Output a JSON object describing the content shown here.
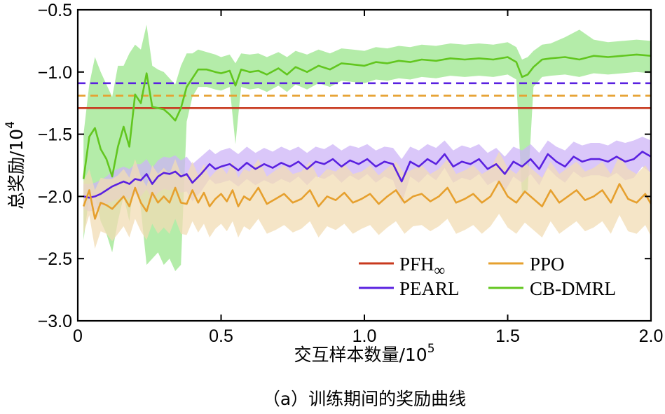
{
  "chart_data": {
    "type": "line",
    "title": "",
    "caption": "（a）训练期间的奖励曲线",
    "xlabel": "交互样本数量/10",
    "xlabel_exp": "5",
    "ylabel": "总奖励/10",
    "ylabel_exp": "4",
    "xlim": [
      0,
      2.0
    ],
    "ylim": [
      -3.0,
      -0.5
    ],
    "xticks": [
      0,
      0.5,
      1.0,
      1.5,
      2.0
    ],
    "xtick_labels": [
      "0",
      "0.5",
      "1.0",
      "1.5",
      "2.0"
    ],
    "yticks": [
      -3.0,
      -2.5,
      -2.0,
      -1.5,
      -1.0,
      -0.5
    ],
    "ytick_labels": [
      "−3.0",
      "−2.5",
      "−2.0",
      "−1.5",
      "−1.0",
      "−0.5"
    ],
    "legend_position": "bottom-right",
    "legend": [
      {
        "label": "PFH",
        "sub": "∞",
        "color": "#c8391e"
      },
      {
        "label": "PPO",
        "sub": "",
        "color": "#e6a02e"
      },
      {
        "label": "PEARL",
        "sub": "",
        "color": "#5a21e0"
      },
      {
        "label": "CB-DMRL",
        "sub": "",
        "color": "#62c61f"
      }
    ],
    "series": [
      {
        "name": "PFH∞",
        "color": "#c8391e",
        "style": "solid",
        "kind": "constant",
        "x": [
          0,
          2.0
        ],
        "y": [
          -1.29,
          -1.29
        ]
      },
      {
        "name": "PPO baseline",
        "color": "#e6a02e",
        "style": "dashed",
        "kind": "constant",
        "x": [
          0,
          2.0
        ],
        "y": [
          -1.19,
          -1.19
        ]
      },
      {
        "name": "PEARL baseline",
        "color": "#5a21e0",
        "style": "dashed",
        "kind": "constant",
        "x": [
          0,
          2.0
        ],
        "y": [
          -1.09,
          -1.09
        ]
      },
      {
        "name": "CB-DMRL",
        "color": "#62c61f",
        "band_color": "#9be58c",
        "kind": "curve",
        "x": [
          0.02,
          0.04,
          0.06,
          0.08,
          0.1,
          0.12,
          0.14,
          0.16,
          0.18,
          0.2,
          0.22,
          0.24,
          0.26,
          0.28,
          0.3,
          0.32,
          0.34,
          0.36,
          0.38,
          0.4,
          0.42,
          0.45,
          0.48,
          0.5,
          0.53,
          0.55,
          0.57,
          0.6,
          0.63,
          0.66,
          0.7,
          0.73,
          0.76,
          0.8,
          0.84,
          0.88,
          0.92,
          0.96,
          1.0,
          1.04,
          1.08,
          1.12,
          1.16,
          1.2,
          1.25,
          1.3,
          1.35,
          1.4,
          1.45,
          1.5,
          1.53,
          1.55,
          1.57,
          1.59,
          1.62,
          1.65,
          1.7,
          1.75,
          1.8,
          1.85,
          1.9,
          1.95,
          2.0
        ],
        "y": [
          -1.86,
          -1.52,
          -1.45,
          -1.62,
          -1.7,
          -1.84,
          -1.6,
          -1.44,
          -1.6,
          -1.18,
          -1.25,
          -1.01,
          -1.28,
          -1.29,
          -1.3,
          -1.34,
          -1.39,
          -1.29,
          -1.12,
          -1.05,
          -0.98,
          -0.98,
          -1.0,
          -1.01,
          -0.99,
          -1.11,
          -0.98,
          -1.0,
          -0.99,
          -1.02,
          -0.97,
          -1.02,
          -0.96,
          -1.0,
          -0.95,
          -0.98,
          -0.93,
          -0.94,
          -0.95,
          -0.92,
          -0.93,
          -0.91,
          -0.92,
          -0.9,
          -0.91,
          -0.89,
          -0.9,
          -0.89,
          -0.9,
          -0.88,
          -0.92,
          -1.04,
          -1.02,
          -0.96,
          -0.9,
          -0.89,
          -0.88,
          -0.9,
          -0.87,
          -0.88,
          -0.87,
          -0.86,
          -0.87
        ],
        "upper": [
          -1.5,
          -1.1,
          -0.88,
          -1.0,
          -1.1,
          -1.2,
          -0.95,
          -0.95,
          -0.85,
          -0.78,
          -0.82,
          -0.62,
          -0.95,
          -0.98,
          -1.0,
          -1.05,
          -1.1,
          -0.95,
          -0.85,
          -0.85,
          -0.82,
          -0.84,
          -0.86,
          -0.88,
          -0.86,
          -0.93,
          -0.85,
          -0.86,
          -0.85,
          -0.88,
          -0.84,
          -0.88,
          -0.83,
          -0.86,
          -0.82,
          -0.85,
          -0.81,
          -0.82,
          -0.83,
          -0.8,
          -0.81,
          -0.79,
          -0.8,
          -0.78,
          -0.79,
          -0.77,
          -0.78,
          -0.77,
          -0.78,
          -0.76,
          -0.8,
          -0.9,
          -0.88,
          -0.83,
          -0.78,
          -0.77,
          -0.72,
          -0.66,
          -0.74,
          -0.76,
          -0.75,
          -0.74,
          -0.75
        ],
        "lower": [
          -2.35,
          -2.0,
          -2.0,
          -2.2,
          -2.3,
          -2.45,
          -2.2,
          -2.0,
          -2.2,
          -1.8,
          -2.1,
          -2.55,
          -2.5,
          -2.45,
          -2.55,
          -2.5,
          -2.6,
          -2.55,
          -1.4,
          -1.2,
          -1.12,
          -1.12,
          -1.14,
          -1.15,
          -1.12,
          -1.58,
          -1.12,
          -1.14,
          -1.13,
          -1.16,
          -1.11,
          -1.16,
          -1.1,
          -1.14,
          -1.09,
          -1.12,
          -1.07,
          -1.08,
          -1.09,
          -1.06,
          -1.07,
          -1.05,
          -1.06,
          -1.04,
          -1.05,
          -1.03,
          -1.04,
          -1.03,
          -1.04,
          -1.02,
          -1.06,
          -2.0,
          -1.95,
          -1.12,
          -1.04,
          -1.03,
          -1.02,
          -1.04,
          -1.01,
          -1.02,
          -1.01,
          -1.0,
          -1.01
        ]
      },
      {
        "name": "PEARL",
        "color": "#5a21e0",
        "band_color": "#cdb4f7",
        "kind": "curve",
        "x": [
          0.02,
          0.04,
          0.06,
          0.08,
          0.1,
          0.12,
          0.14,
          0.16,
          0.18,
          0.2,
          0.22,
          0.24,
          0.26,
          0.28,
          0.3,
          0.32,
          0.34,
          0.36,
          0.38,
          0.4,
          0.43,
          0.46,
          0.48,
          0.5,
          0.53,
          0.56,
          0.59,
          0.62,
          0.65,
          0.68,
          0.71,
          0.74,
          0.77,
          0.8,
          0.83,
          0.86,
          0.89,
          0.92,
          0.95,
          0.98,
          1.01,
          1.04,
          1.07,
          1.1,
          1.13,
          1.16,
          1.19,
          1.22,
          1.25,
          1.28,
          1.31,
          1.34,
          1.37,
          1.4,
          1.43,
          1.46,
          1.49,
          1.52,
          1.55,
          1.58,
          1.61,
          1.64,
          1.67,
          1.7,
          1.73,
          1.76,
          1.79,
          1.82,
          1.85,
          1.88,
          1.91,
          1.94,
          1.97,
          2.0
        ],
        "y": [
          -2.0,
          -2.01,
          -2.0,
          -1.98,
          -1.95,
          -1.92,
          -1.9,
          -1.88,
          -1.9,
          -1.86,
          -1.87,
          -1.82,
          -1.9,
          -1.84,
          -1.81,
          -1.82,
          -1.8,
          -1.84,
          -1.82,
          -1.89,
          -1.82,
          -1.74,
          -1.78,
          -1.76,
          -1.74,
          -1.79,
          -1.73,
          -1.78,
          -1.74,
          -1.77,
          -1.73,
          -1.76,
          -1.72,
          -1.78,
          -1.72,
          -1.74,
          -1.7,
          -1.76,
          -1.71,
          -1.74,
          -1.7,
          -1.76,
          -1.72,
          -1.74,
          -1.88,
          -1.72,
          -1.76,
          -1.7,
          -1.74,
          -1.66,
          -1.76,
          -1.72,
          -1.74,
          -1.7,
          -1.78,
          -1.74,
          -1.82,
          -1.72,
          -1.76,
          -1.7,
          -1.78,
          -1.66,
          -1.72,
          -1.76,
          -1.68,
          -1.72,
          -1.7,
          -1.7,
          -1.72,
          -1.68,
          -1.72,
          -1.7,
          -1.64,
          -1.68
        ],
        "upper": [
          -1.9,
          -1.9,
          -1.89,
          -1.87,
          -1.84,
          -1.8,
          -1.78,
          -1.76,
          -1.78,
          -1.74,
          -1.74,
          -1.7,
          -1.77,
          -1.71,
          -1.68,
          -1.69,
          -1.67,
          -1.71,
          -1.68,
          -1.74,
          -1.68,
          -1.62,
          -1.66,
          -1.63,
          -1.61,
          -1.66,
          -1.6,
          -1.65,
          -1.61,
          -1.64,
          -1.6,
          -1.63,
          -1.6,
          -1.65,
          -1.6,
          -1.62,
          -1.58,
          -1.63,
          -1.59,
          -1.61,
          -1.58,
          -1.63,
          -1.6,
          -1.61,
          -1.7,
          -1.6,
          -1.63,
          -1.58,
          -1.61,
          -1.55,
          -1.63,
          -1.59,
          -1.61,
          -1.58,
          -1.65,
          -1.61,
          -1.68,
          -1.6,
          -1.63,
          -1.58,
          -1.65,
          -1.55,
          -1.6,
          -1.63,
          -1.56,
          -1.59,
          -1.57,
          -1.57,
          -1.59,
          -1.55,
          -1.57,
          -1.55,
          -1.52,
          -1.55
        ],
        "lower": [
          -2.1,
          -2.12,
          -2.11,
          -2.09,
          -2.06,
          -2.04,
          -2.02,
          -2.0,
          -2.02,
          -1.98,
          -2.0,
          -1.94,
          -2.03,
          -1.97,
          -1.94,
          -1.95,
          -1.93,
          -1.97,
          -1.96,
          -2.04,
          -1.96,
          -1.86,
          -1.9,
          -1.89,
          -1.87,
          -1.92,
          -1.86,
          -1.91,
          -1.87,
          -1.9,
          -1.86,
          -1.89,
          -1.84,
          -1.91,
          -1.84,
          -1.86,
          -1.82,
          -1.89,
          -1.83,
          -1.87,
          -1.82,
          -1.89,
          -1.84,
          -1.87,
          -2.06,
          -1.84,
          -1.89,
          -1.82,
          -1.87,
          -1.77,
          -1.89,
          -1.85,
          -1.87,
          -1.82,
          -1.91,
          -1.87,
          -1.96,
          -1.84,
          -1.89,
          -1.82,
          -1.91,
          -1.77,
          -1.84,
          -1.89,
          -1.8,
          -1.85,
          -1.83,
          -1.83,
          -1.85,
          -1.81,
          -1.87,
          -1.85,
          -1.76,
          -1.81
        ]
      },
      {
        "name": "PPO",
        "color": "#e6a02e",
        "band_color": "#f2dcb4",
        "kind": "curve",
        "x": [
          0.02,
          0.04,
          0.06,
          0.08,
          0.1,
          0.12,
          0.14,
          0.16,
          0.18,
          0.2,
          0.22,
          0.24,
          0.26,
          0.28,
          0.3,
          0.32,
          0.34,
          0.36,
          0.38,
          0.4,
          0.42,
          0.44,
          0.46,
          0.48,
          0.5,
          0.52,
          0.54,
          0.56,
          0.58,
          0.6,
          0.63,
          0.66,
          0.69,
          0.72,
          0.75,
          0.78,
          0.81,
          0.84,
          0.87,
          0.9,
          0.93,
          0.96,
          0.99,
          1.02,
          1.05,
          1.08,
          1.11,
          1.14,
          1.17,
          1.2,
          1.23,
          1.26,
          1.29,
          1.32,
          1.35,
          1.38,
          1.41,
          1.44,
          1.47,
          1.5,
          1.53,
          1.56,
          1.59,
          1.62,
          1.65,
          1.68,
          1.71,
          1.74,
          1.77,
          1.8,
          1.83,
          1.86,
          1.89,
          1.92,
          1.95,
          1.98,
          2.0
        ],
        "y": [
          -2.08,
          -1.95,
          -2.18,
          -2.05,
          -2.07,
          -2.1,
          -2.05,
          -2.0,
          -2.08,
          -1.93,
          -2.05,
          -2.12,
          -1.97,
          -2.05,
          -2.0,
          -2.05,
          -1.93,
          -2.05,
          -2.06,
          -1.95,
          -2.05,
          -1.97,
          -2.08,
          -2.02,
          -1.98,
          -2.04,
          -1.95,
          -2.08,
          -2.0,
          -2.03,
          -1.93,
          -2.06,
          -2.02,
          -1.98,
          -2.05,
          -2.02,
          -1.95,
          -2.08,
          -2.0,
          -2.03,
          -1.97,
          -2.05,
          -2.02,
          -1.98,
          -2.06,
          -2.0,
          -1.95,
          -2.05,
          -2.0,
          -1.98,
          -2.04,
          -2.0,
          -1.93,
          -2.05,
          -2.02,
          -1.98,
          -2.05,
          -2.0,
          -1.88,
          -2.0,
          -2.05,
          -1.96,
          -2.02,
          -2.08,
          -1.95,
          -2.05,
          -2.0,
          -1.95,
          -2.03,
          -2.0,
          -1.95,
          -2.05,
          -1.9,
          -2.02,
          -2.05,
          -1.98,
          -2.06
        ],
        "upper": [
          -1.88,
          -1.78,
          -1.95,
          -1.85,
          -1.86,
          -1.86,
          -1.83,
          -1.78,
          -1.85,
          -1.7,
          -1.84,
          -1.92,
          -1.75,
          -1.82,
          -1.77,
          -1.82,
          -1.7,
          -1.82,
          -1.83,
          -1.72,
          -1.83,
          -1.74,
          -1.85,
          -1.8,
          -1.76,
          -1.82,
          -1.72,
          -1.85,
          -1.78,
          -1.8,
          -1.7,
          -1.84,
          -1.79,
          -1.75,
          -1.82,
          -1.8,
          -1.72,
          -1.85,
          -1.78,
          -1.8,
          -1.74,
          -1.82,
          -1.8,
          -1.75,
          -1.83,
          -1.77,
          -1.72,
          -1.82,
          -1.78,
          -1.75,
          -1.82,
          -1.78,
          -1.7,
          -1.82,
          -1.79,
          -1.75,
          -1.82,
          -1.78,
          -1.64,
          -1.77,
          -1.82,
          -1.73,
          -1.79,
          -1.85,
          -1.72,
          -1.82,
          -1.77,
          -1.72,
          -1.8,
          -1.77,
          -1.72,
          -1.82,
          -1.67,
          -1.78,
          -1.82,
          -1.75,
          -1.82
        ],
        "lower": [
          -2.3,
          -2.15,
          -2.42,
          -2.28,
          -2.3,
          -2.36,
          -2.3,
          -2.24,
          -2.33,
          -2.18,
          -2.28,
          -2.35,
          -2.22,
          -2.3,
          -2.25,
          -2.3,
          -2.18,
          -2.3,
          -2.31,
          -2.2,
          -2.29,
          -2.22,
          -2.33,
          -2.26,
          -2.22,
          -2.28,
          -2.2,
          -2.33,
          -2.24,
          -2.27,
          -2.18,
          -2.3,
          -2.27,
          -2.23,
          -2.29,
          -2.26,
          -2.2,
          -2.33,
          -2.24,
          -2.27,
          -2.22,
          -2.3,
          -2.26,
          -2.23,
          -2.31,
          -2.25,
          -2.2,
          -2.3,
          -2.24,
          -2.23,
          -2.28,
          -2.24,
          -2.18,
          -2.3,
          -2.27,
          -2.23,
          -2.3,
          -2.24,
          -2.14,
          -2.25,
          -2.3,
          -2.21,
          -2.27,
          -2.33,
          -2.2,
          -2.3,
          -2.25,
          -2.2,
          -2.28,
          -2.25,
          -2.2,
          -2.3,
          -2.15,
          -2.28,
          -2.3,
          -2.23,
          -2.32
        ]
      }
    ]
  }
}
